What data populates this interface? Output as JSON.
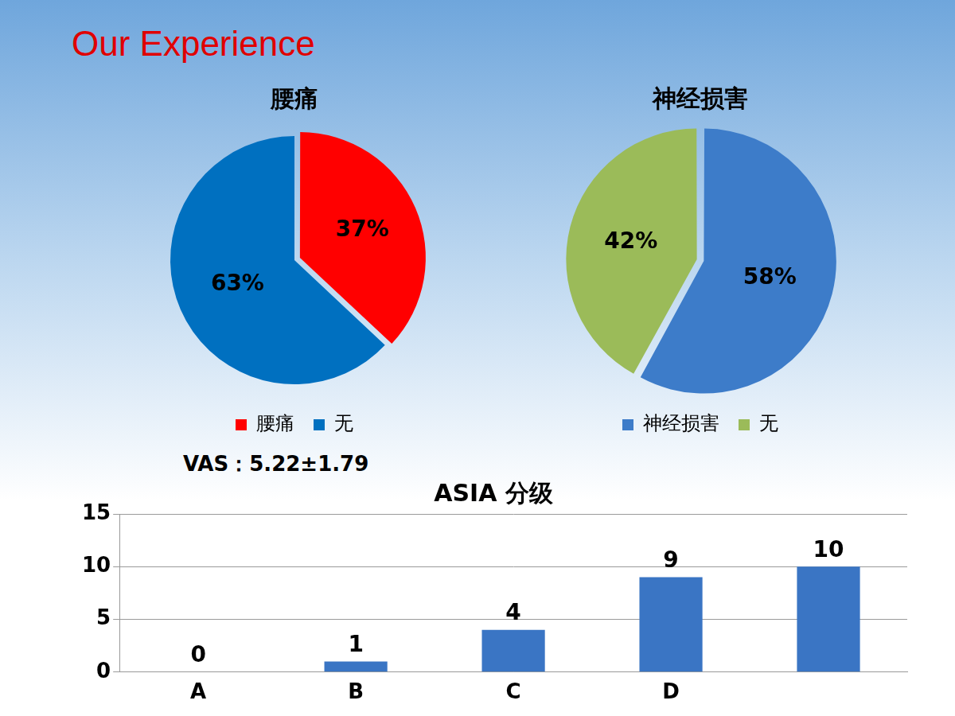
{
  "title": "Our Experience",
  "chart_data": [
    {
      "type": "pie",
      "title": "腰痛",
      "categories": [
        "腰痛",
        "无"
      ],
      "values": [
        37,
        63
      ],
      "value_labels": [
        "37%",
        "63%"
      ],
      "colors": [
        "#ff0000",
        "#0070c0"
      ],
      "data_labels": true,
      "legend": "bottom",
      "annotation": "VAS：5.22±1.79"
    },
    {
      "type": "pie",
      "title": "神经损害",
      "categories": [
        "神经损害",
        "无"
      ],
      "values": [
        58,
        42
      ],
      "value_labels": [
        "58%",
        "42%"
      ],
      "colors": [
        "#3d7cc9",
        "#9bbb59"
      ],
      "data_labels": true,
      "legend": "bottom"
    },
    {
      "type": "bar",
      "title": "ASIA 分级",
      "categories": [
        "A",
        "B",
        "C",
        "D",
        null
      ],
      "values": [
        0,
        1,
        4,
        9,
        10
      ],
      "color": "#3a75c4",
      "ylim": [
        0,
        15
      ],
      "yticks": [
        0,
        5,
        10,
        15
      ],
      "grid": true,
      "data_labels": true
    }
  ]
}
